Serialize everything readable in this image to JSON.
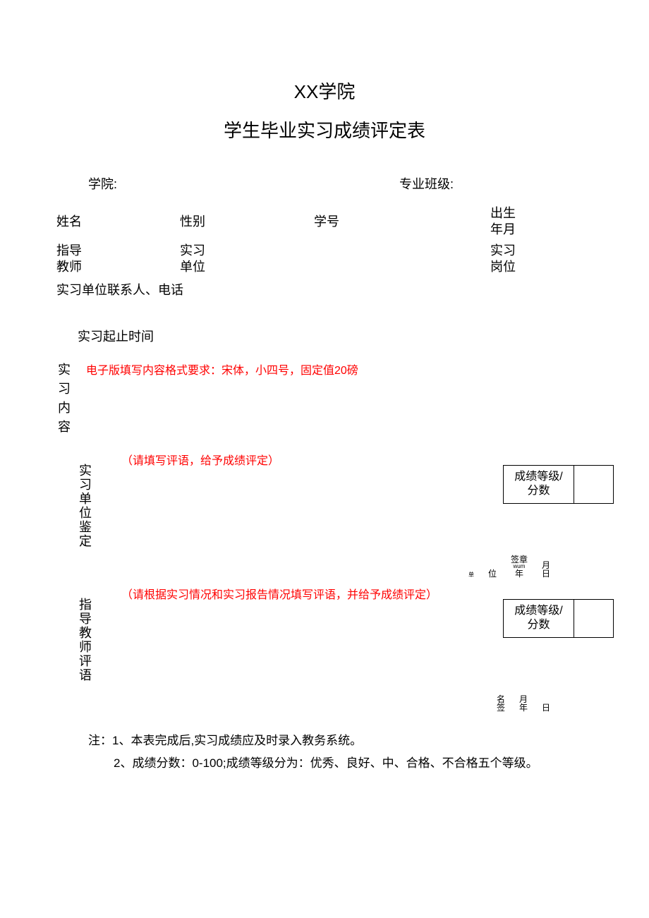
{
  "title1": "XX学院",
  "title2": "学生毕业实习成绩评定表",
  "header": {
    "college_label": "学院:",
    "major_class_label": "专业班级:"
  },
  "info": {
    "name_label": "姓名",
    "gender_label": "性别",
    "student_id_label": "学号",
    "dob_label1": "出生",
    "dob_label2": "年月",
    "teacher_label1": "指导",
    "teacher_label2": "教师",
    "unit_label1": "实习",
    "unit_label2": "单位",
    "post_label1": "实习",
    "post_label2": "岗位",
    "contact_label": "实习单位联系人、电话",
    "period_label": "实习起止时间"
  },
  "sections": {
    "content_vlabel": "实习内容",
    "unit_eval_vlabel": "实习单位鉴定",
    "teacher_eval_vlabel": "指导教师评语",
    "content_hint": "电子版填写内容格式要求：宋体，小四号，固定值20磅",
    "unit_eval_hint": "（请填写评语，给予成绩评定）",
    "teacher_eval_hint": "（请根据实习情况和实习报告情况填写评语，并给予成绩评定）",
    "grade_label": "成绩等级/分数"
  },
  "signature": {
    "unit": "单",
    "wei": "位",
    "seal": "签章",
    "year": "年",
    "month": "月",
    "day": "日",
    "sign": "签",
    "name": "名"
  },
  "notes": {
    "n1": "注：1、本表完成后,实习成绩应及时录入教务系统。",
    "n2": "2、成绩分数：0-100;成绩等级分为：优秀、良好、中、合格、不合格五个等级。"
  },
  "colors": {
    "text": "#000000",
    "accent": "#ff0000",
    "background": "#ffffff",
    "border": "#000000"
  }
}
